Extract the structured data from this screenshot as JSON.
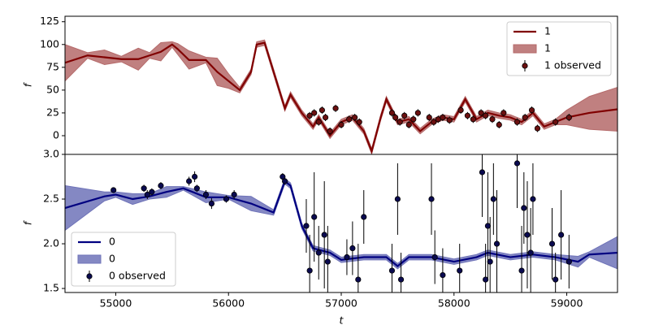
{
  "chart_data": [
    {
      "type": "line",
      "ylabel": "f",
      "legend": "upper right",
      "xlim": [
        54550,
        59450
      ],
      "ylim": [
        -20.5,
        131
      ],
      "yticks": [
        0,
        25,
        50,
        75,
        100,
        125
      ],
      "series": [
        {
          "name": "1",
          "kind": "line",
          "color": "#800000",
          "x": [
            54550,
            54750,
            54900,
            55050,
            55200,
            55300,
            55400,
            55500,
            55550,
            55650,
            55800,
            55900,
            56000,
            56100,
            56200,
            56250,
            56320,
            56400,
            56500,
            56550,
            56650,
            56750,
            56800,
            56900,
            57000,
            57100,
            57200,
            57270,
            57350,
            57400,
            57500,
            57600,
            57700,
            57800,
            57900,
            58000,
            58100,
            58200,
            58300,
            58400,
            58500,
            58600,
            58700,
            58800,
            58900,
            59000,
            59200,
            59450
          ],
          "values": [
            80,
            88,
            86,
            84,
            84,
            88,
            92,
            100,
            95,
            83,
            83,
            70,
            60,
            50,
            70,
            100,
            102,
            70,
            30,
            45,
            25,
            10,
            20,
            0,
            15,
            20,
            5,
            -17,
            20,
            40,
            15,
            18,
            5,
            15,
            20,
            18,
            40,
            18,
            25,
            22,
            20,
            15,
            25,
            10,
            15,
            20,
            25,
            29
          ]
        },
        {
          "name": "1",
          "kind": "band",
          "color": "#b56a6a",
          "x": [
            54550,
            54750,
            54900,
            55050,
            55200,
            55300,
            55400,
            55500,
            55550,
            55650,
            55800,
            55900,
            56000,
            56100,
            56200,
            56250,
            56320,
            56400,
            56500,
            56550,
            56650,
            56750,
            56800,
            56900,
            57000,
            57100,
            57200,
            57270,
            57350,
            57400,
            57500,
            57600,
            57700,
            57800,
            57900,
            58000,
            58100,
            58200,
            58300,
            58400,
            58500,
            58600,
            58700,
            58800,
            58900,
            59000,
            59200,
            59450
          ],
          "lower": [
            60,
            85,
            78,
            81,
            72,
            85,
            82,
            97,
            89,
            73,
            80,
            55,
            52,
            47,
            67,
            97,
            99,
            67,
            27,
            42,
            22,
            7,
            17,
            -3,
            12,
            17,
            2,
            -20,
            17,
            37,
            12,
            15,
            2,
            12,
            17,
            15,
            37,
            15,
            22,
            19,
            17,
            12,
            22,
            7,
            12,
            12,
            7,
            5
          ],
          "upper": [
            100,
            91,
            94,
            87,
            96,
            91,
            102,
            103,
            101,
            93,
            86,
            85,
            68,
            53,
            73,
            103,
            105,
            73,
            33,
            48,
            28,
            13,
            23,
            3,
            18,
            23,
            8,
            -14,
            23,
            43,
            18,
            21,
            8,
            18,
            23,
            21,
            43,
            21,
            28,
            25,
            23,
            18,
            28,
            13,
            18,
            28,
            43,
            53
          ]
        },
        {
          "name": "1 observed",
          "kind": "errorbar",
          "color": "#6b1010",
          "x": [
            56720,
            56760,
            56800,
            56830,
            56860,
            56900,
            56950,
            57000,
            57070,
            57120,
            57160,
            57450,
            57480,
            57520,
            57560,
            57600,
            57640,
            57680,
            57780,
            57820,
            57860,
            57900,
            57960,
            58060,
            58120,
            58170,
            58240,
            58280,
            58340,
            58400,
            58440,
            58560,
            58630,
            58690,
            58740,
            58900,
            59020
          ],
          "values": [
            22,
            25,
            15,
            28,
            20,
            5,
            30,
            12,
            18,
            20,
            15,
            25,
            20,
            15,
            22,
            12,
            18,
            25,
            20,
            15,
            18,
            20,
            17,
            28,
            22,
            18,
            25,
            22,
            18,
            12,
            25,
            15,
            20,
            28,
            8,
            15,
            20
          ],
          "errors": [
            4,
            4,
            4,
            4,
            4,
            4,
            4,
            4,
            4,
            4,
            4,
            4,
            4,
            4,
            4,
            4,
            4,
            4,
            4,
            4,
            4,
            4,
            4,
            4,
            4,
            4,
            4,
            4,
            4,
            4,
            4,
            4,
            4,
            4,
            4,
            4,
            4
          ]
        }
      ]
    },
    {
      "type": "line",
      "ylabel": "f",
      "xlabel": "t",
      "legend": "lower left",
      "xlim": [
        54550,
        59450
      ],
      "ylim": [
        1.455,
        3.0
      ],
      "xticks": [
        55000,
        56000,
        57000,
        58000,
        59000
      ],
      "yticks": [
        1.5,
        {
          "value": 2,
          "label": "2.0"
        },
        2.5,
        {
          "value": 3,
          "label": "3.0"
        }
      ],
      "series": [
        {
          "name": "0",
          "kind": "line",
          "color": "#000080",
          "x": [
            54550,
            54900,
            55000,
            55150,
            55300,
            55450,
            55600,
            55800,
            56000,
            56200,
            56400,
            56500,
            56550,
            56650,
            56750,
            56900,
            57000,
            57200,
            57400,
            57500,
            57600,
            57800,
            58000,
            58200,
            58300,
            58500,
            58700,
            58900,
            59100,
            59200,
            59450
          ],
          "values": [
            2.4,
            2.53,
            2.55,
            2.5,
            2.53,
            2.58,
            2.62,
            2.52,
            2.52,
            2.45,
            2.35,
            2.7,
            2.65,
            2.2,
            1.95,
            1.9,
            1.82,
            1.85,
            1.85,
            1.75,
            1.85,
            1.85,
            1.8,
            1.85,
            1.9,
            1.85,
            1.88,
            1.85,
            1.8,
            1.88,
            1.9
          ]
        },
        {
          "name": "0",
          "kind": "band",
          "color": "#6f73b8",
          "x": [
            54550,
            54900,
            55000,
            55150,
            55300,
            55450,
            55600,
            55800,
            56000,
            56200,
            56400,
            56500,
            56550,
            56650,
            56750,
            56900,
            57000,
            57200,
            57400,
            57500,
            57600,
            57800,
            58000,
            58200,
            58300,
            58500,
            58700,
            58900,
            59100,
            59200,
            59450
          ],
          "lower": [
            2.15,
            2.48,
            2.52,
            2.44,
            2.5,
            2.52,
            2.6,
            2.46,
            2.5,
            2.37,
            2.32,
            2.67,
            2.62,
            2.17,
            1.92,
            1.87,
            1.79,
            1.82,
            1.82,
            1.72,
            1.82,
            1.82,
            1.77,
            1.82,
            1.87,
            1.82,
            1.85,
            1.82,
            1.74,
            1.85,
            1.72
          ],
          "upper": [
            2.65,
            2.58,
            2.58,
            2.56,
            2.56,
            2.64,
            2.64,
            2.58,
            2.54,
            2.53,
            2.38,
            2.73,
            2.68,
            2.23,
            1.98,
            1.93,
            1.85,
            1.88,
            1.88,
            1.78,
            1.88,
            1.88,
            1.83,
            1.88,
            1.93,
            1.88,
            1.91,
            1.88,
            1.86,
            1.91,
            2.08
          ]
        },
        {
          "name": "0 observed",
          "kind": "errorbar",
          "color": "#0a0a50",
          "x": [
            54980,
            55250,
            55280,
            55320,
            55400,
            55650,
            55700,
            55720,
            55800,
            55850,
            55980,
            56050,
            56480,
            56500,
            56690,
            56720,
            56760,
            56800,
            56850,
            56880,
            57050,
            57100,
            57150,
            57200,
            57450,
            57500,
            57530,
            57800,
            57830,
            57900,
            58050,
            58250,
            58280,
            58300,
            58320,
            58350,
            58380,
            58560,
            58600,
            58620,
            58650,
            58680,
            58700,
            58870,
            58900,
            58950,
            59020
          ],
          "values": [
            2.6,
            2.62,
            2.55,
            2.58,
            2.65,
            2.7,
            2.75,
            2.62,
            2.55,
            2.45,
            2.5,
            2.55,
            2.75,
            2.7,
            2.2,
            1.7,
            2.3,
            1.9,
            2.1,
            1.8,
            1.85,
            1.95,
            1.6,
            2.3,
            1.7,
            2.5,
            1.6,
            2.5,
            1.85,
            1.65,
            1.7,
            2.8,
            1.6,
            2.2,
            1.8,
            2.5,
            2.0,
            2.9,
            1.7,
            2.4,
            2.1,
            1.9,
            2.5,
            2.0,
            1.6,
            2.1,
            1.8
          ],
          "errors": [
            0.03,
            0.04,
            0.05,
            0.04,
            0.04,
            0.05,
            0.06,
            0.04,
            0.05,
            0.06,
            0.04,
            0.05,
            0.04,
            0.04,
            0.3,
            0.4,
            0.5,
            0.3,
            0.6,
            0.4,
            0.2,
            0.3,
            0.4,
            0.3,
            0.3,
            0.4,
            0.3,
            0.4,
            0.3,
            0.3,
            0.3,
            0.5,
            0.4,
            0.6,
            0.5,
            0.4,
            0.6,
            0.5,
            0.5,
            0.4,
            0.6,
            0.5,
            0.4,
            0.4,
            0.3,
            0.5,
            0.3
          ]
        }
      ]
    }
  ]
}
